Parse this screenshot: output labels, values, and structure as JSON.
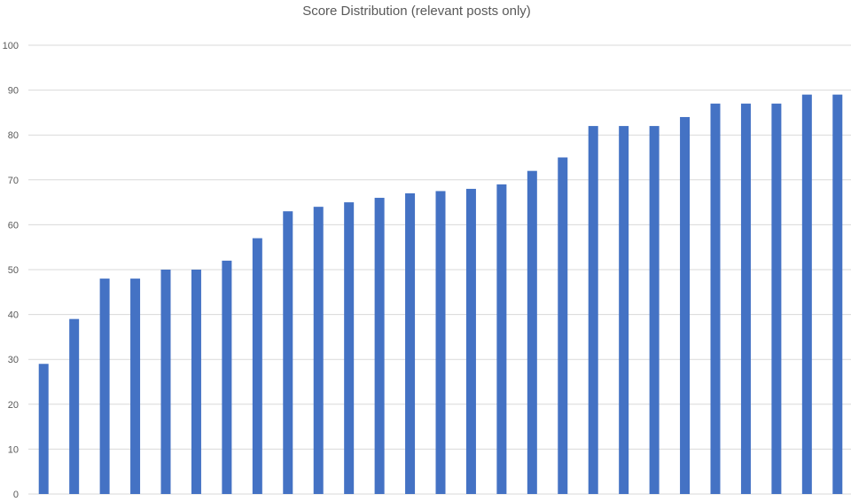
{
  "chart_data": {
    "type": "bar",
    "title": "Score Distribution (relevant posts only)",
    "xlabel": "",
    "ylabel": "",
    "ylim": [
      0,
      100
    ],
    "yticks": [
      "0",
      "10",
      "20",
      "30",
      "40",
      "50",
      "60",
      "70",
      "80",
      "90",
      "100"
    ],
    "grid": true,
    "legend": "none",
    "bar_color": "#4472C4",
    "values": [
      29,
      39,
      48,
      48,
      50,
      50,
      52,
      57,
      63,
      64,
      65,
      66,
      67,
      67.5,
      68,
      69,
      72,
      75,
      82,
      82,
      82,
      84,
      87,
      87,
      87,
      89,
      89
    ]
  }
}
